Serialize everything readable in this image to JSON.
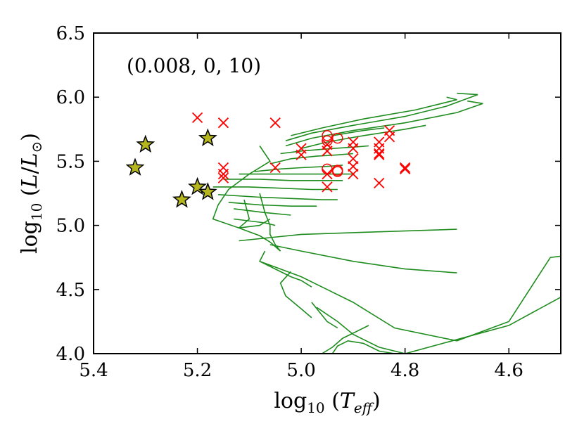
{
  "chart_data": {
    "type": "scatter",
    "title": "",
    "annotation": "(0.008, 0, 10)",
    "xlabel": "log10(Teff)",
    "ylabel": "log10(L/L⊙)",
    "xlim": [
      5.4,
      4.5
    ],
    "ylim": [
      4.0,
      6.5
    ],
    "x_inverted": true,
    "grid": false,
    "x_ticks": [
      5.4,
      5.2,
      5.0,
      4.8,
      4.6
    ],
    "x_tick_labels": [
      "5.4",
      "5.2",
      "5.0",
      "4.8",
      "4.6"
    ],
    "y_ticks": [
      4.0,
      4.5,
      5.0,
      5.5,
      6.0,
      6.5
    ],
    "y_tick_labels": [
      "4.0",
      "4.5",
      "5.0",
      "5.5",
      "6.0",
      "6.5"
    ],
    "colors": {
      "stars": "#b5b51e",
      "crosses": "#ff0000",
      "circles": "#ff0000",
      "tracks": "#1e8c1e"
    },
    "series": [
      {
        "marker": "star",
        "color": "#b5b51e",
        "points": [
          [
            5.32,
            5.45
          ],
          [
            5.3,
            5.63
          ],
          [
            5.23,
            5.2
          ],
          [
            5.2,
            5.3
          ],
          [
            5.18,
            5.68
          ],
          [
            5.18,
            5.26
          ]
        ]
      },
      {
        "marker": "cross",
        "color": "#ff0000",
        "points": [
          [
            5.2,
            5.84
          ],
          [
            5.15,
            5.8
          ],
          [
            5.05,
            5.8
          ],
          [
            5.15,
            5.45
          ],
          [
            5.15,
            5.4
          ],
          [
            5.15,
            5.37
          ],
          [
            5.05,
            5.45
          ],
          [
            5.0,
            5.6
          ],
          [
            5.0,
            5.55
          ],
          [
            4.95,
            5.63
          ],
          [
            4.95,
            5.58
          ],
          [
            4.95,
            5.4
          ],
          [
            4.95,
            5.3
          ],
          [
            4.9,
            5.65
          ],
          [
            4.9,
            5.6
          ],
          [
            4.9,
            5.52
          ],
          [
            4.9,
            5.46
          ],
          [
            4.9,
            5.4
          ],
          [
            4.85,
            5.65
          ],
          [
            4.85,
            5.6
          ],
          [
            4.85,
            5.56
          ],
          [
            4.85,
            5.55
          ],
          [
            4.85,
            5.33
          ],
          [
            4.83,
            5.74
          ],
          [
            4.83,
            5.69
          ],
          [
            4.8,
            5.45
          ],
          [
            4.8,
            5.44
          ]
        ]
      },
      {
        "marker": "circle",
        "color": "#ff0000",
        "points": [
          [
            4.95,
            5.7
          ],
          [
            4.95,
            5.66
          ],
          [
            4.93,
            5.68
          ],
          [
            4.95,
            5.44
          ],
          [
            4.93,
            5.43
          ],
          [
            4.93,
            5.42
          ]
        ]
      },
      {
        "marker": "track",
        "color": "#1e8c1e",
        "tracks": [
          [
            [
              5.03,
              5.62
            ],
            [
              4.98,
              5.68
            ],
            [
              4.9,
              5.74
            ],
            [
              4.8,
              5.8
            ],
            [
              4.7,
              5.88
            ],
            [
              4.65,
              5.95
            ],
            [
              4.68,
              5.97
            ]
          ],
          [
            [
              5.03,
              5.66
            ],
            [
              4.98,
              5.72
            ],
            [
              4.9,
              5.78
            ],
            [
              4.8,
              5.85
            ],
            [
              4.72,
              5.93
            ],
            [
              4.66,
              6.02
            ],
            [
              4.7,
              6.03
            ]
          ],
          [
            [
              5.02,
              5.7
            ],
            [
              4.96,
              5.76
            ],
            [
              4.88,
              5.83
            ],
            [
              4.78,
              5.9
            ],
            [
              4.7,
              5.98
            ],
            [
              4.72,
              6.0
            ]
          ],
          [
            [
              5.0,
              5.6
            ],
            [
              4.95,
              5.65
            ],
            [
              4.88,
              5.7
            ],
            [
              4.8,
              5.75
            ],
            [
              4.76,
              5.78
            ]
          ],
          [
            [
              4.94,
              5.7
            ],
            [
              4.88,
              5.74
            ],
            [
              4.84,
              5.76
            ]
          ],
          [
            [
              5.04,
              5.56
            ],
            [
              5.0,
              5.58
            ],
            [
              4.94,
              5.6
            ],
            [
              4.9,
              5.61
            ],
            [
              4.87,
              5.62
            ]
          ],
          [
            [
              5.06,
              5.48
            ],
            [
              5.02,
              5.52
            ],
            [
              4.97,
              5.54
            ],
            [
              4.93,
              5.55
            ],
            [
              4.9,
              5.56
            ]
          ],
          [
            [
              5.09,
              5.42
            ],
            [
              5.04,
              5.44
            ],
            [
              5.0,
              5.45
            ],
            [
              4.95,
              5.46
            ],
            [
              4.92,
              5.47
            ]
          ],
          [
            [
              5.12,
              5.4
            ],
            [
              5.06,
              5.4
            ],
            [
              5.0,
              5.4
            ],
            [
              4.95,
              5.4
            ],
            [
              4.9,
              5.4
            ]
          ],
          [
            [
              5.15,
              5.36
            ],
            [
              5.08,
              5.36
            ],
            [
              5.02,
              5.35
            ],
            [
              4.96,
              5.35
            ],
            [
              4.92,
              5.35
            ]
          ],
          [
            [
              5.17,
              5.3
            ],
            [
              5.1,
              5.3
            ],
            [
              5.04,
              5.29
            ],
            [
              4.98,
              5.28
            ],
            [
              4.93,
              5.28
            ]
          ],
          [
            [
              5.16,
              5.24
            ],
            [
              5.08,
              5.22
            ],
            [
              5.02,
              5.21
            ],
            [
              4.96,
              5.2
            ],
            [
              4.93,
              5.2
            ]
          ],
          [
            [
              5.14,
              5.18
            ],
            [
              5.08,
              5.16
            ],
            [
              5.02,
              5.15
            ],
            [
              4.97,
              5.15
            ]
          ],
          [
            [
              5.13,
              5.13
            ],
            [
              5.07,
              5.1
            ],
            [
              5.02,
              5.08
            ]
          ],
          [
            [
              5.13,
              5.05
            ],
            [
              5.07,
              5.02
            ],
            [
              5.05,
              5.0
            ]
          ],
          [
            [
              5.08,
              5.62
            ],
            [
              5.06,
              5.5
            ],
            [
              5.1,
              5.4
            ],
            [
              5.14,
              5.28
            ],
            [
              5.16,
              5.16
            ],
            [
              5.17,
              5.05
            ],
            [
              5.12,
              4.98
            ],
            [
              5.08,
              5.0
            ],
            [
              5.06,
              5.05
            ]
          ],
          [
            [
              5.08,
              5.25
            ],
            [
              5.07,
              5.1
            ],
            [
              5.06,
              5.0
            ],
            [
              5.06,
              4.93
            ],
            [
              5.05,
              4.85
            ],
            [
              5.04,
              4.8
            ]
          ],
          [
            [
              5.11,
              5.2
            ],
            [
              5.1,
              5.05
            ],
            [
              5.12,
              4.98
            ],
            [
              5.08,
              4.92
            ],
            [
              5.06,
              4.87
            ],
            [
              5.04,
              4.8
            ]
          ],
          [
            [
              5.12,
              4.88
            ],
            [
              5.0,
              4.93
            ],
            [
              4.85,
              4.95
            ],
            [
              4.7,
              4.97
            ]
          ],
          [
            [
              5.06,
              4.85
            ],
            [
              5.0,
              4.8
            ],
            [
              4.9,
              4.72
            ],
            [
              4.8,
              4.66
            ],
            [
              4.7,
              4.63
            ]
          ],
          [
            [
              5.07,
              4.8
            ],
            [
              5.08,
              4.72
            ],
            [
              5.05,
              4.66
            ],
            [
              5.02,
              4.6
            ],
            [
              5.0,
              4.57
            ],
            [
              4.98,
              4.52
            ]
          ],
          [
            [
              5.08,
              4.72
            ],
            [
              5.04,
              4.66
            ],
            [
              5.0,
              4.6
            ],
            [
              4.95,
              4.5
            ],
            [
              4.9,
              4.4
            ],
            [
              4.82,
              4.2
            ],
            [
              4.7,
              4.1
            ],
            [
              4.6,
              4.25
            ],
            [
              4.52,
              4.75
            ],
            [
              4.5,
              4.76
            ]
          ],
          [
            [
              5.02,
              4.64
            ],
            [
              5.04,
              4.55
            ],
            [
              5.03,
              4.45
            ],
            [
              5.0,
              4.35
            ],
            [
              4.98,
              4.28
            ]
          ],
          [
            [
              4.98,
              4.4
            ],
            [
              4.96,
              4.3
            ],
            [
              4.95,
              4.25
            ],
            [
              4.93,
              4.2
            ]
          ],
          [
            [
              4.97,
              4.36
            ],
            [
              4.93,
              4.25
            ],
            [
              4.9,
              4.15
            ],
            [
              4.85,
              4.05
            ],
            [
              4.8,
              4.0
            ],
            [
              4.6,
              4.22
            ],
            [
              4.5,
              4.44
            ]
          ],
          [
            [
              4.96,
              4.0
            ],
            [
              4.94,
              4.05
            ],
            [
              4.92,
              4.12
            ],
            [
              4.89,
              4.18
            ],
            [
              4.87,
              4.22
            ]
          ],
          [
            [
              4.94,
              4.0
            ],
            [
              4.93,
              4.06
            ],
            [
              4.91,
              4.1
            ],
            [
              4.88,
              4.08
            ],
            [
              4.85,
              4.02
            ],
            [
              4.82,
              4.0
            ]
          ]
        ]
      }
    ]
  }
}
